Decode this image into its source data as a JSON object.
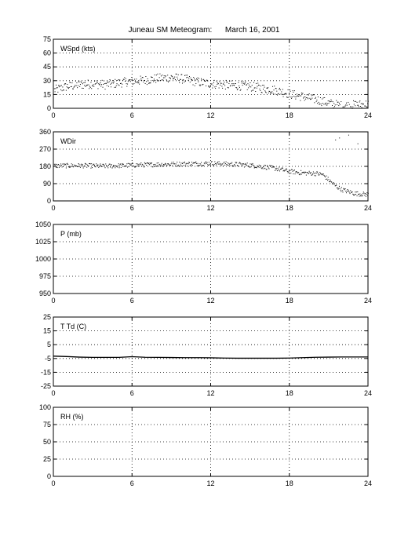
{
  "title": "Juneau SM Meteogram:      March 16, 2001",
  "chart_data": [
    {
      "type": "scatter",
      "label": "WSpd (kts)",
      "xlim": [
        0,
        24
      ],
      "ylim": [
        0,
        75
      ],
      "xticks": [
        0,
        6,
        12,
        18,
        24
      ],
      "yticks": [
        0,
        15,
        30,
        45,
        60,
        75
      ],
      "grid": true,
      "trend": [
        [
          0,
          20
        ],
        [
          1,
          24
        ],
        [
          2,
          26
        ],
        [
          3,
          27
        ],
        [
          4,
          26
        ],
        [
          5,
          28
        ],
        [
          6,
          30
        ],
        [
          7,
          31
        ],
        [
          8,
          33
        ],
        [
          9,
          34
        ],
        [
          10,
          32
        ],
        [
          11,
          29
        ],
        [
          12,
          27
        ],
        [
          13,
          26
        ],
        [
          14,
          25
        ],
        [
          15,
          24
        ],
        [
          16,
          22
        ],
        [
          17,
          20
        ],
        [
          18,
          16
        ],
        [
          19,
          13
        ],
        [
          20,
          10
        ],
        [
          21,
          6
        ],
        [
          22,
          3
        ],
        [
          23,
          4
        ],
        [
          24,
          5
        ]
      ],
      "spread": 5
    },
    {
      "type": "scatter",
      "label": "WDir",
      "xlim": [
        0,
        24
      ],
      "ylim": [
        0,
        360
      ],
      "xticks": [
        0,
        6,
        12,
        18,
        24
      ],
      "yticks": [
        0,
        90,
        180,
        270,
        360
      ],
      "grid": true,
      "trend": [
        [
          0,
          185
        ],
        [
          2,
          186
        ],
        [
          4,
          183
        ],
        [
          6,
          188
        ],
        [
          8,
          192
        ],
        [
          10,
          195
        ],
        [
          12,
          198
        ],
        [
          13,
          195
        ],
        [
          14,
          192
        ],
        [
          15,
          188
        ],
        [
          16,
          180
        ],
        [
          17,
          170
        ],
        [
          18,
          155
        ],
        [
          19,
          148
        ],
        [
          20,
          145
        ],
        [
          20.5,
          140
        ],
        [
          21,
          110
        ],
        [
          21.5,
          80
        ],
        [
          22,
          60
        ],
        [
          23,
          40
        ],
        [
          24,
          35
        ]
      ],
      "spread": 12,
      "outliers": [
        [
          21.8,
          330
        ],
        [
          22.5,
          345
        ],
        [
          23.2,
          300
        ],
        [
          21.5,
          320
        ]
      ]
    },
    {
      "type": "line",
      "label": "P (mb)",
      "xlim": [
        0,
        24
      ],
      "ylim": [
        950,
        1050
      ],
      "xticks": [
        0,
        6,
        12,
        18,
        24
      ],
      "yticks": [
        950,
        975,
        1000,
        1025,
        1050
      ],
      "grid": true,
      "series": []
    },
    {
      "type": "line",
      "label": "T Td (C)",
      "xlim": [
        0,
        24
      ],
      "ylim": [
        -25,
        25
      ],
      "xticks": [
        0,
        6,
        12,
        18,
        24
      ],
      "yticks": [
        -25,
        -15,
        -5,
        5,
        15,
        25
      ],
      "grid": true,
      "series": [
        {
          "x": [
            0,
            1,
            2,
            3,
            4,
            5,
            6,
            6.5,
            7,
            8,
            9,
            10,
            11,
            12,
            13,
            14,
            15,
            16,
            17,
            18,
            19,
            20,
            21,
            22,
            23,
            24
          ],
          "y": [
            -3.3,
            -3.6,
            -4.0,
            -4.2,
            -4.2,
            -4.2,
            -3.7,
            -3.9,
            -4.1,
            -4.2,
            -4.3,
            -4.4,
            -4.4,
            -4.5,
            -4.7,
            -4.8,
            -4.8,
            -4.8,
            -4.8,
            -4.7,
            -4.4,
            -4.1,
            -4.0,
            -3.9,
            -3.9,
            -3.9
          ]
        }
      ]
    },
    {
      "type": "line",
      "label": "RH (%)",
      "xlim": [
        0,
        24
      ],
      "ylim": [
        0,
        100
      ],
      "xticks": [
        0,
        6,
        12,
        18,
        24
      ],
      "yticks": [
        0,
        25,
        50,
        75,
        100
      ],
      "grid": true,
      "series": []
    }
  ]
}
